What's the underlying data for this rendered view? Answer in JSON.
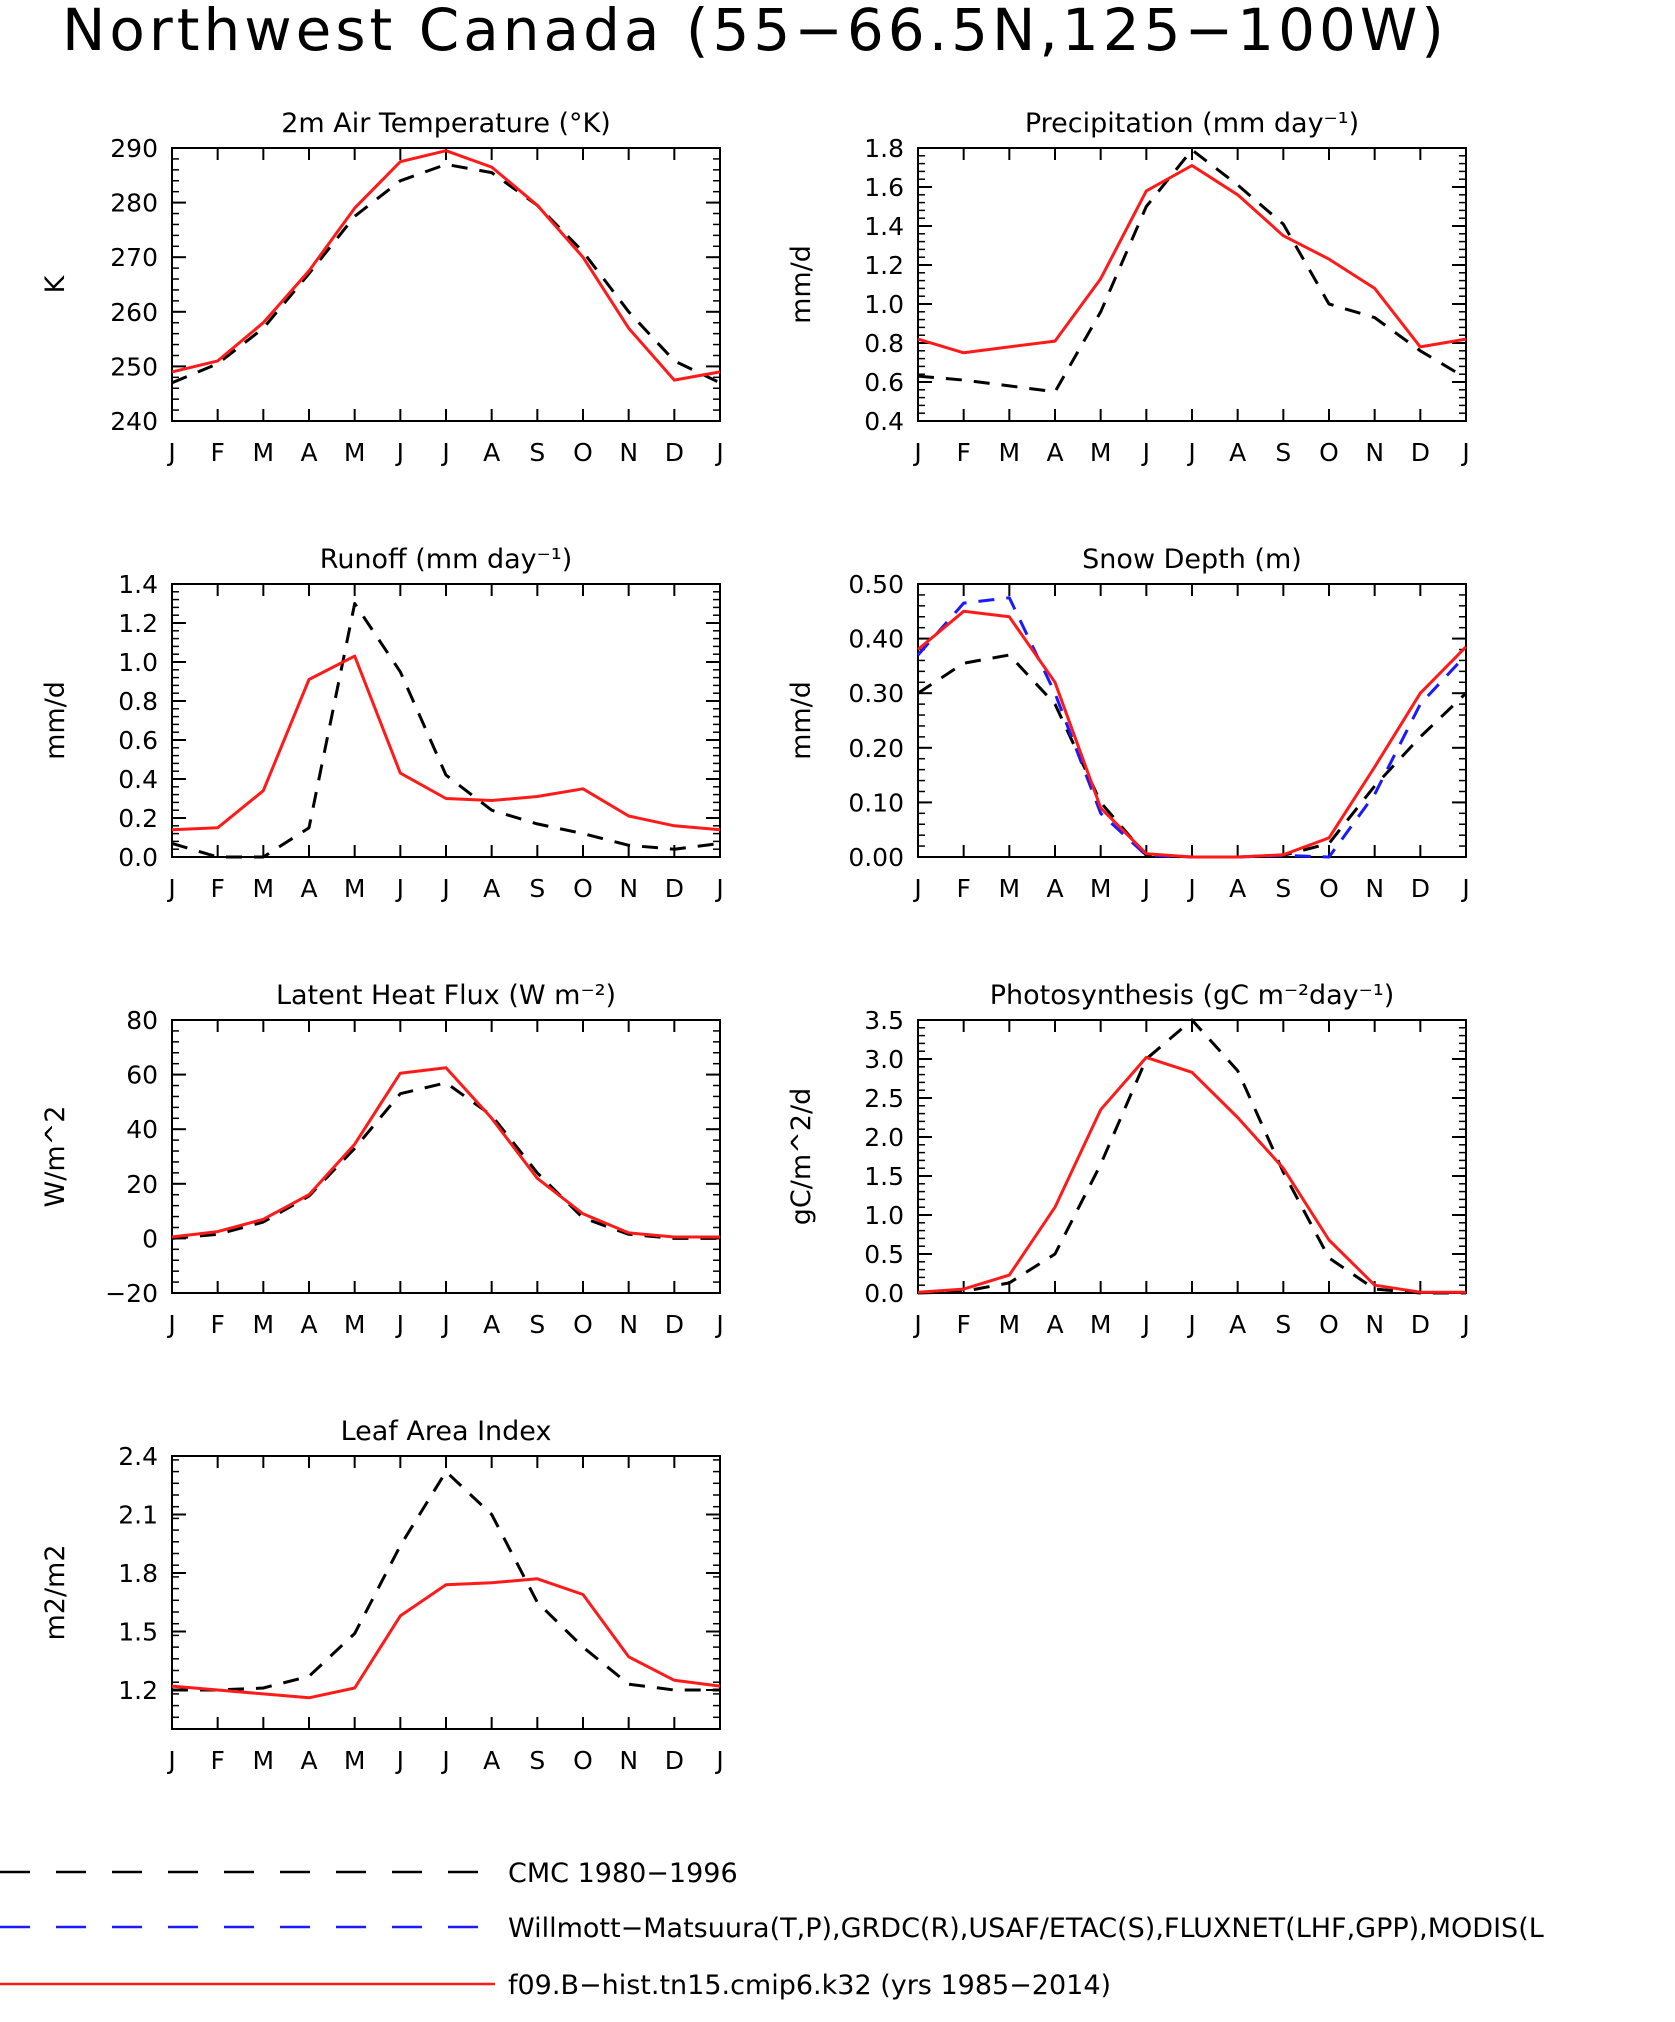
{
  "title": "Northwest Canada (55−66.5N,125−100W)",
  "colors": {
    "obs1": "#000000",
    "obs2": "#1a1aff",
    "model": "#ff1a1a"
  },
  "months": [
    "J",
    "F",
    "M",
    "A",
    "M",
    "J",
    "J",
    "A",
    "S",
    "O",
    "N",
    "D",
    "J"
  ],
  "legend": [
    {
      "key": "obs1",
      "label": "CMC 1980−1996"
    },
    {
      "key": "obs2",
      "label": "Willmott−Matsuura(T,P),GRDC(R),USAF/ETAC(S),FLUXNET(LHF,GPP),MODIS(L"
    },
    {
      "key": "model",
      "label": "f09.B−hist.tn15.cmip6.k32 (yrs 1985−2014)"
    }
  ],
  "chart_data": [
    {
      "type": "line",
      "title": "2m Air Temperature (°K)",
      "ylabel": "K",
      "ylim": [
        240,
        290
      ],
      "yticks": [
        240,
        250,
        260,
        270,
        280,
        290
      ],
      "yticklabels": [
        "240",
        "250",
        "260",
        "270",
        "280",
        "290"
      ],
      "series": [
        {
          "key": "obs1",
          "dashed": true,
          "values": [
            247,
            250.5,
            257,
            267,
            277.5,
            284,
            287,
            285.5,
            279.5,
            271,
            260,
            251,
            247
          ]
        },
        {
          "key": "model",
          "dashed": false,
          "values": [
            249,
            251,
            258,
            267.5,
            279,
            287.5,
            289.5,
            286.5,
            279.5,
            270,
            257,
            247.5,
            249
          ]
        }
      ]
    },
    {
      "type": "line",
      "title": "Precipitation (mm day⁻¹)",
      "ylabel": "mm/d",
      "ylim": [
        0.4,
        1.8
      ],
      "yticks": [
        0.4,
        0.6,
        0.8,
        1.0,
        1.2,
        1.4,
        1.6,
        1.8
      ],
      "yticklabels": [
        "0.4",
        "0.6",
        "0.8",
        "1.0",
        "1.2",
        "1.4",
        "1.6",
        "1.8"
      ],
      "series": [
        {
          "key": "obs1",
          "dashed": true,
          "values": [
            0.63,
            0.61,
            0.58,
            0.55,
            0.96,
            1.5,
            1.79,
            1.61,
            1.41,
            1.0,
            0.93,
            0.76,
            0.62
          ]
        },
        {
          "key": "model",
          "dashed": false,
          "values": [
            0.82,
            0.75,
            0.78,
            0.81,
            1.13,
            1.58,
            1.71,
            1.56,
            1.35,
            1.23,
            1.08,
            0.78,
            0.82
          ]
        }
      ]
    },
    {
      "type": "line",
      "title": "Runoff (mm day⁻¹)",
      "ylabel": "mm/d",
      "ylim": [
        0.0,
        1.4
      ],
      "yticks": [
        0.0,
        0.2,
        0.4,
        0.6,
        0.8,
        1.0,
        1.2,
        1.4
      ],
      "yticklabels": [
        "0.0",
        "0.2",
        "0.4",
        "0.6",
        "0.8",
        "1.0",
        "1.2",
        "1.4"
      ],
      "series": [
        {
          "key": "obs1",
          "dashed": true,
          "values": [
            0.07,
            0.0,
            0.0,
            0.15,
            1.3,
            0.95,
            0.42,
            0.24,
            0.17,
            0.12,
            0.06,
            0.04,
            0.07
          ]
        },
        {
          "key": "model",
          "dashed": false,
          "values": [
            0.14,
            0.15,
            0.34,
            0.91,
            1.03,
            0.43,
            0.3,
            0.29,
            0.31,
            0.35,
            0.21,
            0.16,
            0.14
          ]
        }
      ]
    },
    {
      "type": "line",
      "title": "Snow Depth (m)",
      "ylabel": "mm/d",
      "ylim": [
        0.0,
        0.5
      ],
      "yticks": [
        0.0,
        0.1,
        0.2,
        0.3,
        0.4,
        0.5
      ],
      "yticklabels": [
        "0.00",
        "0.10",
        "0.20",
        "0.30",
        "0.40",
        "0.50"
      ],
      "series": [
        {
          "key": "obs1",
          "dashed": true,
          "values": [
            0.3,
            0.355,
            0.37,
            0.28,
            0.1,
            0.003,
            0.0,
            0.0,
            0.003,
            0.025,
            0.13,
            0.22,
            0.3
          ]
        },
        {
          "key": "obs2",
          "dashed": true,
          "values": [
            0.37,
            0.465,
            0.475,
            0.3,
            0.08,
            0.003,
            0.0,
            0.0,
            0.003,
            0.0,
            0.115,
            0.28,
            0.37
          ]
        },
        {
          "key": "model",
          "dashed": false,
          "values": [
            0.38,
            0.45,
            0.44,
            0.32,
            0.09,
            0.006,
            0.0,
            0.0,
            0.004,
            0.035,
            0.165,
            0.3,
            0.385
          ]
        }
      ]
    },
    {
      "type": "line",
      "title": "Latent Heat Flux (W m⁻²)",
      "ylabel": "W/m^2",
      "ylim": [
        -20,
        80
      ],
      "yticks": [
        -20,
        0,
        20,
        40,
        60,
        80
      ],
      "yticklabels": [
        "−20",
        "0",
        "20",
        "40",
        "60",
        "80"
      ],
      "series": [
        {
          "key": "obs1",
          "dashed": true,
          "values": [
            0,
            1.5,
            6,
            15.5,
            33,
            53,
            57,
            45,
            24,
            7.5,
            1.5,
            0,
            0
          ]
        },
        {
          "key": "model",
          "dashed": false,
          "values": [
            0.5,
            2.5,
            7,
            16,
            34.5,
            60.5,
            62.5,
            44,
            22,
            9,
            2,
            0.5,
            0.5
          ]
        }
      ]
    },
    {
      "type": "line",
      "title": "Photosynthesis (gC m⁻²day⁻¹)",
      "ylabel": "gC/m^2/d",
      "ylim": [
        0.0,
        3.5
      ],
      "yticks": [
        0.0,
        0.5,
        1.0,
        1.5,
        2.0,
        2.5,
        3.0,
        3.5
      ],
      "yticklabels": [
        "0.0",
        "0.5",
        "1.0",
        "1.5",
        "2.0",
        "2.5",
        "3.0",
        "3.5"
      ],
      "series": [
        {
          "key": "obs1",
          "dashed": true,
          "values": [
            0.0,
            0.02,
            0.13,
            0.5,
            1.65,
            3.0,
            3.5,
            2.85,
            1.55,
            0.45,
            0.05,
            0.0,
            0.0
          ]
        },
        {
          "key": "model",
          "dashed": false,
          "values": [
            0.01,
            0.05,
            0.23,
            1.1,
            2.35,
            3.02,
            2.83,
            2.25,
            1.6,
            0.68,
            0.1,
            0.01,
            0.01
          ]
        }
      ]
    },
    {
      "type": "line",
      "title": "Leaf Area Index",
      "ylabel": "m2/m2",
      "ylim": [
        1.0,
        2.4
      ],
      "yticks": [
        1.2,
        1.5,
        1.8,
        2.1,
        2.4
      ],
      "yticklabels": [
        "1.2",
        "1.5",
        "1.8",
        "2.1",
        "2.4"
      ],
      "series": [
        {
          "key": "obs1",
          "dashed": true,
          "values": [
            1.2,
            1.2,
            1.21,
            1.27,
            1.49,
            1.94,
            2.32,
            2.1,
            1.65,
            1.42,
            1.23,
            1.2,
            1.2
          ]
        },
        {
          "key": "model",
          "dashed": false,
          "values": [
            1.22,
            1.2,
            1.18,
            1.16,
            1.21,
            1.58,
            1.74,
            1.75,
            1.77,
            1.69,
            1.37,
            1.25,
            1.22
          ]
        }
      ]
    }
  ]
}
